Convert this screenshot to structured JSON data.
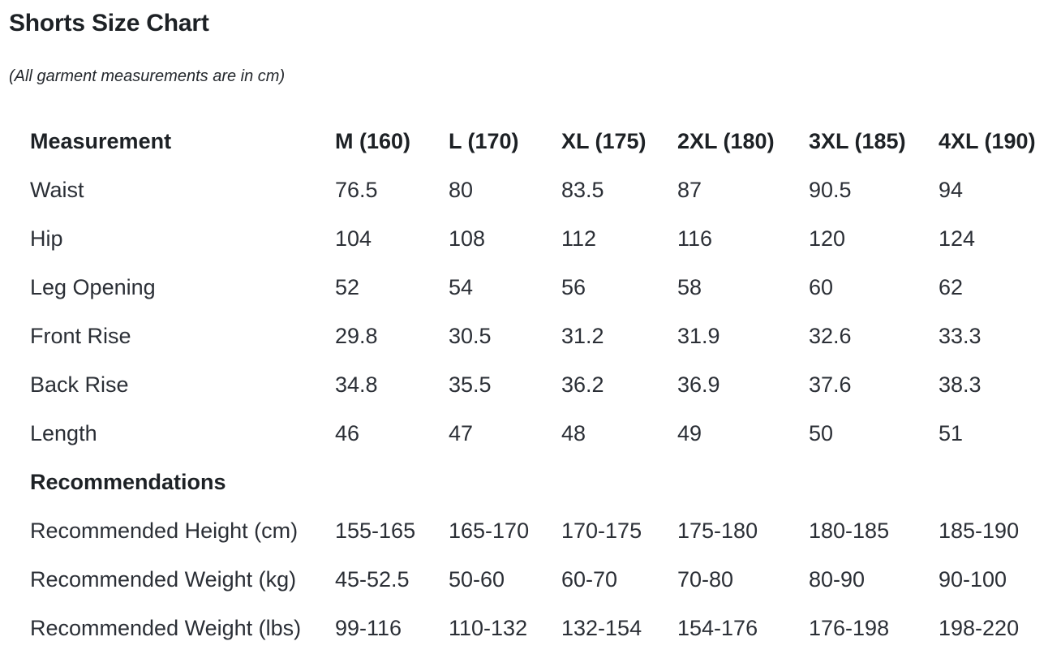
{
  "page": {
    "title": "Shorts Size Chart",
    "subtitle": "(All garment measurements are in cm)"
  },
  "colors": {
    "background": "#ffffff",
    "heading_text": "#1d2125",
    "body_text": "#2b2f36"
  },
  "chart_data": {
    "type": "table",
    "title": "Shorts Size Chart",
    "note": "(All garment measurements are in cm)",
    "columns": [
      "Measurement",
      "M (160)",
      "L (170)",
      "XL (175)",
      "2XL (180)",
      "3XL (185)",
      "4XL (190)"
    ],
    "rows": [
      {
        "label": "Waist",
        "section": false,
        "values": [
          "76.5",
          "80",
          "83.5",
          "87",
          "90.5",
          "94"
        ]
      },
      {
        "label": "Hip",
        "section": false,
        "values": [
          "104",
          "108",
          "112",
          "116",
          "120",
          "124"
        ]
      },
      {
        "label": "Leg Opening",
        "section": false,
        "values": [
          "52",
          "54",
          "56",
          "58",
          "60",
          "62"
        ]
      },
      {
        "label": "Front Rise",
        "section": false,
        "values": [
          "29.8",
          "30.5",
          "31.2",
          "31.9",
          "32.6",
          "33.3"
        ]
      },
      {
        "label": "Back Rise",
        "section": false,
        "values": [
          "34.8",
          "35.5",
          "36.2",
          "36.9",
          "37.6",
          "38.3"
        ]
      },
      {
        "label": "Length",
        "section": false,
        "values": [
          "46",
          "47",
          "48",
          "49",
          "50",
          "51"
        ]
      },
      {
        "label": "Recommendations",
        "section": true,
        "values": []
      },
      {
        "label": "Recommended Height (cm)",
        "section": false,
        "values": [
          "155-165",
          "165-170",
          "170-175",
          "175-180",
          "180-185",
          "185-190"
        ]
      },
      {
        "label": "Recommended Weight (kg)",
        "section": false,
        "values": [
          "45-52.5",
          "50-60",
          "60-70",
          "70-80",
          "80-90",
          "90-100"
        ]
      },
      {
        "label": "Recommended Weight (lbs)",
        "section": false,
        "values": [
          "99-116",
          "110-132",
          "132-154",
          "154-176",
          "176-198",
          "198-220"
        ]
      }
    ]
  }
}
